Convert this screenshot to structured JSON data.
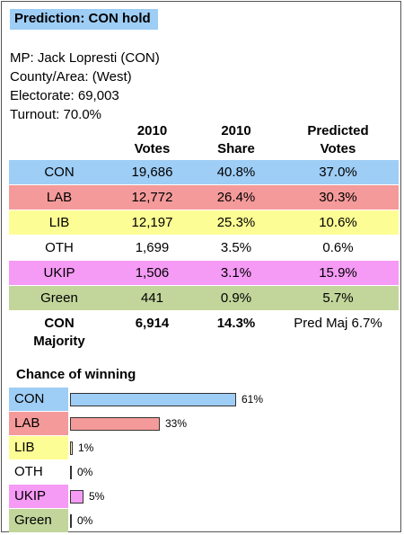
{
  "headline": "Prediction: CON hold",
  "info": {
    "mp": "MP: Jack Lopresti  (CON)",
    "county": "County/Area: (West)",
    "electorate": "Electorate: 69,003",
    "turnout": "Turnout: 70.0%"
  },
  "table": {
    "headers": {
      "votes_1": "2010",
      "votes_2": "Votes",
      "share_1": "2010",
      "share_2": "Share",
      "pred_1": "Predicted",
      "pred_2": "Votes"
    },
    "rows": [
      {
        "party": "CON",
        "votes": "19,686",
        "share": "40.8%",
        "predicted": "37.0%",
        "color": "#9ecdf5"
      },
      {
        "party": "LAB",
        "votes": "12,772",
        "share": "26.4%",
        "predicted": "30.3%",
        "color": "#f59a9a"
      },
      {
        "party": "LIB",
        "votes": "12,197",
        "share": "25.3%",
        "predicted": "10.6%",
        "color": "#fdfd95"
      },
      {
        "party": "OTH",
        "votes": "1,699",
        "share": "3.5%",
        "predicted": "0.6%",
        "color": "#ffffff"
      },
      {
        "party": "UKIP",
        "votes": "1,506",
        "share": "3.1%",
        "predicted": "15.9%",
        "color": "#f59af5"
      },
      {
        "party": "Green",
        "votes": "441",
        "share": "0.9%",
        "predicted": "5.7%",
        "color": "#c2d69b"
      }
    ],
    "majority": {
      "label_1": "CON",
      "label_2": "Majority",
      "votes": "6,914",
      "share": "14.3%",
      "predicted": "Pred Maj 6.7%"
    }
  },
  "chance": {
    "title": "Chance of winning",
    "max_bar_percent": 61,
    "rows": [
      {
        "party": "CON",
        "percent": 61,
        "label": "61%",
        "color": "#9ecdf5"
      },
      {
        "party": "LAB",
        "percent": 33,
        "label": "33%",
        "color": "#f59a9a"
      },
      {
        "party": "LIB",
        "percent": 1,
        "label": "1%",
        "color": "#fdfd95"
      },
      {
        "party": "OTH",
        "percent": 0,
        "label": "0%",
        "color": "#ffffff"
      },
      {
        "party": "UKIP",
        "percent": 5,
        "label": "5%",
        "color": "#f59af5"
      },
      {
        "party": "Green",
        "percent": 0,
        "label": "0%",
        "color": "#c2d69b"
      }
    ]
  }
}
